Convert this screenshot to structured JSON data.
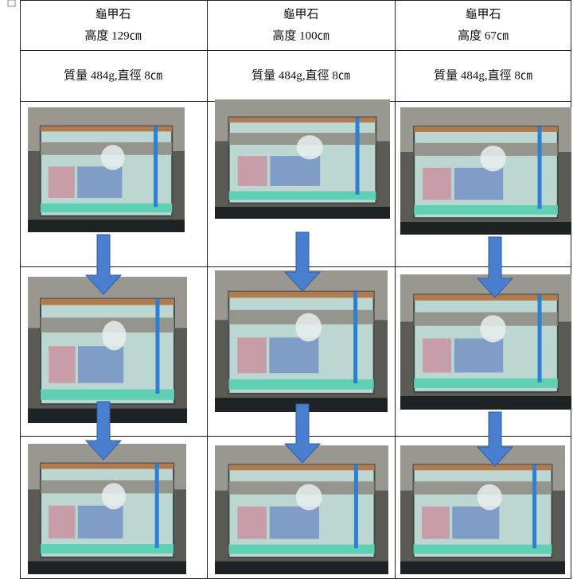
{
  "table": {
    "columns": [
      {
        "material": "龜甲石",
        "height": "高度 129㎝",
        "spec": "質量 484g,直徑 8㎝"
      },
      {
        "material": "龜甲石",
        "height": "高度 100㎝",
        "spec": "質量 484g,直徑 8㎝"
      },
      {
        "material": "龜甲石",
        "height": "高度 67㎝",
        "spec": "質量 484g,直徑 8㎝"
      }
    ]
  }
}
